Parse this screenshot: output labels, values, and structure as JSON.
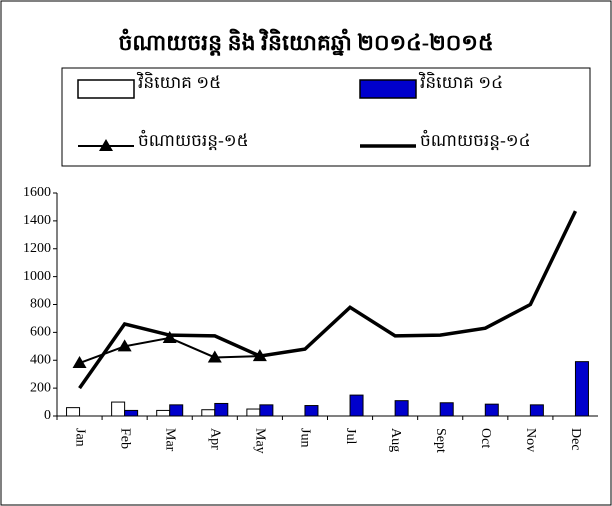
{
  "chart_data": {
    "type": "bar",
    "title": "ចំណាយចរន្ត និង វិនិយោគឆ្នាំ ២០១៤-២០១៥",
    "categories": [
      "Jan",
      "Feb",
      "Mar",
      "Apr",
      "May",
      "Jun",
      "Jul",
      "Aug",
      "Sept",
      "Oct",
      "Nov",
      "Dec"
    ],
    "series": [
      {
        "name": "វិនិយោគ ១៥",
        "type": "bar",
        "color": "#ffffff",
        "values": [
          60,
          100,
          40,
          45,
          50,
          null,
          null,
          null,
          null,
          null,
          null,
          null
        ]
      },
      {
        "name": "វិនិយោគ ១៤",
        "type": "bar",
        "color": "#0000cc",
        "values": [
          null,
          40,
          80,
          90,
          80,
          75,
          150,
          110,
          95,
          85,
          80,
          390
        ]
      },
      {
        "name": "ចំណាយចរន្ត-១៥",
        "type": "line",
        "marker": "triangle",
        "color": "#000000",
        "values": [
          380,
          500,
          560,
          420,
          430,
          null,
          null,
          null,
          null,
          null,
          null,
          null
        ]
      },
      {
        "name": "ចំណាយចរន្ត-១៤",
        "type": "line",
        "marker": "none",
        "color": "#000000",
        "values": [
          200,
          660,
          580,
          575,
          430,
          480,
          780,
          575,
          580,
          630,
          800,
          1470
        ]
      }
    ],
    "ylim": [
      0,
      1600
    ],
    "yticks": [
      0,
      200,
      400,
      600,
      800,
      1000,
      1200,
      1400,
      1600
    ],
    "grid": false
  }
}
